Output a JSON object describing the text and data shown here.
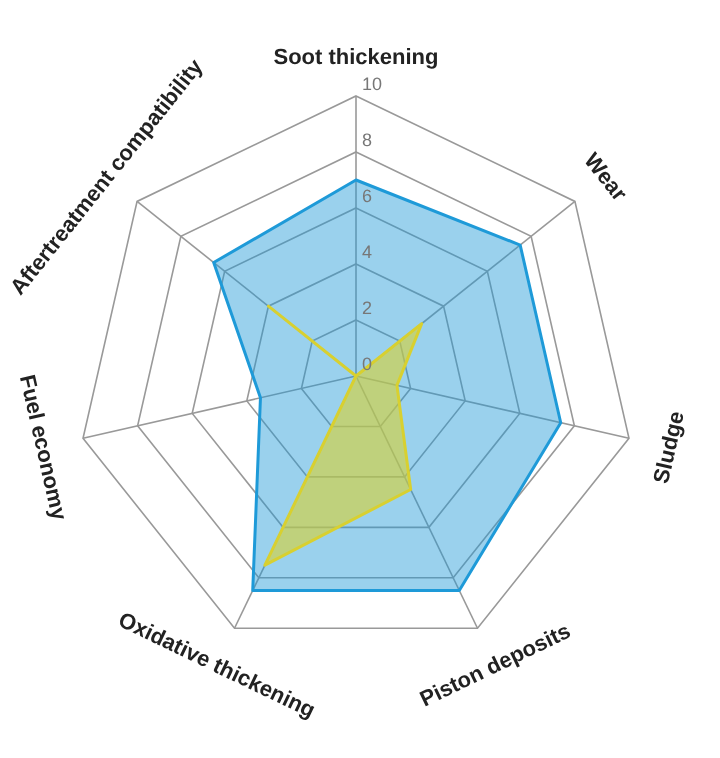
{
  "chart_data": {
    "type": "radar",
    "categories": [
      "Soot thickening",
      "Wear",
      "Sludge",
      "Piston deposits",
      "Oxidative thickening",
      "Fuel economy",
      "Aftertreatment compatibility"
    ],
    "series": [
      {
        "color": "#1e9ad8",
        "values": [
          7,
          7.5,
          7.5,
          8.5,
          8.5,
          3.5,
          6.5
        ]
      },
      {
        "color": "#d8d030",
        "values": [
          0,
          3,
          1.5,
          4.5,
          7.5,
          0,
          4
        ]
      }
    ],
    "ylim": [
      0,
      10
    ],
    "yticks": [
      0,
      2,
      4,
      6,
      8,
      10
    ],
    "grid": true
  }
}
